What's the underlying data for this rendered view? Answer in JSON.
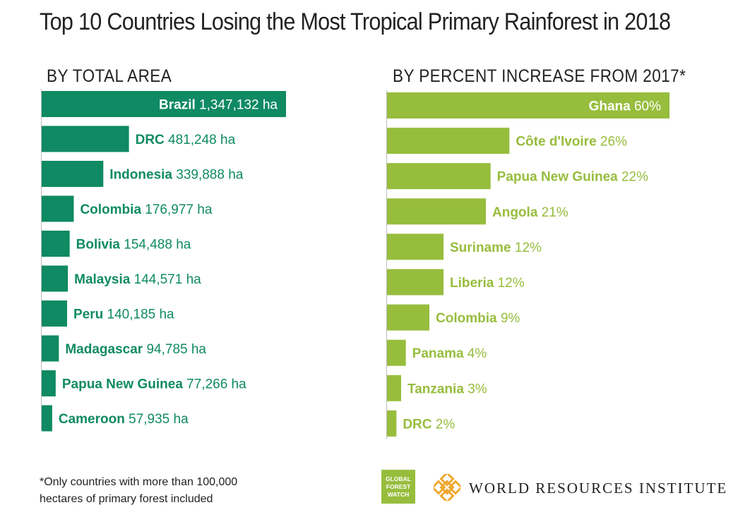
{
  "title": "Top 10 Countries Losing the Most Tropical Primary Rainforest in 2018",
  "footnote": "*Only countries with more than 100,000 hectares of primary forest included",
  "logos": {
    "gfw": [
      "GLOBAL",
      "FOREST",
      "WATCH"
    ],
    "wri": "WORLD RESOURCES INSTITUTE"
  },
  "colors": {
    "left_bar": "#0f8a63",
    "right_bar": "#97bd3d",
    "axis": "#bbbbbb"
  },
  "chart_data": [
    {
      "type": "bar",
      "orientation": "horizontal",
      "title": "BY TOTAL AREA",
      "unit": "ha",
      "categories": [
        "Brazil",
        "DRC",
        "Indonesia",
        "Colombia",
        "Bolivia",
        "Malaysia",
        "Peru",
        "Madagascar",
        "Papua New Guinea",
        "Cameroon"
      ],
      "values": [
        1347132,
        481248,
        339888,
        176977,
        154488,
        144571,
        140185,
        94785,
        77266,
        57935
      ],
      "labels": [
        "1,347,132 ha",
        "481,248 ha",
        "339,888 ha",
        "176,977 ha",
        "154,488 ha",
        "144,571 ha",
        "140,185 ha",
        "94,785 ha",
        "77,266 ha",
        "57,935 ha"
      ],
      "xlim": [
        0,
        1347132
      ]
    },
    {
      "type": "bar",
      "orientation": "horizontal",
      "title": "BY PERCENT INCREASE FROM 2017*",
      "unit": "%",
      "categories": [
        "Ghana",
        "Côte d'Ivoire",
        "Papua New Guinea",
        "Angola",
        "Suriname",
        "Liberia",
        "Colombia",
        "Panama",
        "Tanzania",
        "DRC"
      ],
      "values": [
        60,
        26,
        22,
        21,
        12,
        12,
        9,
        4,
        3,
        2
      ],
      "labels": [
        "60%",
        "26%",
        "22%",
        "21%",
        "12%",
        "12%",
        "9%",
        "4%",
        "3%",
        "2%"
      ],
      "xlim": [
        0,
        60
      ]
    }
  ]
}
